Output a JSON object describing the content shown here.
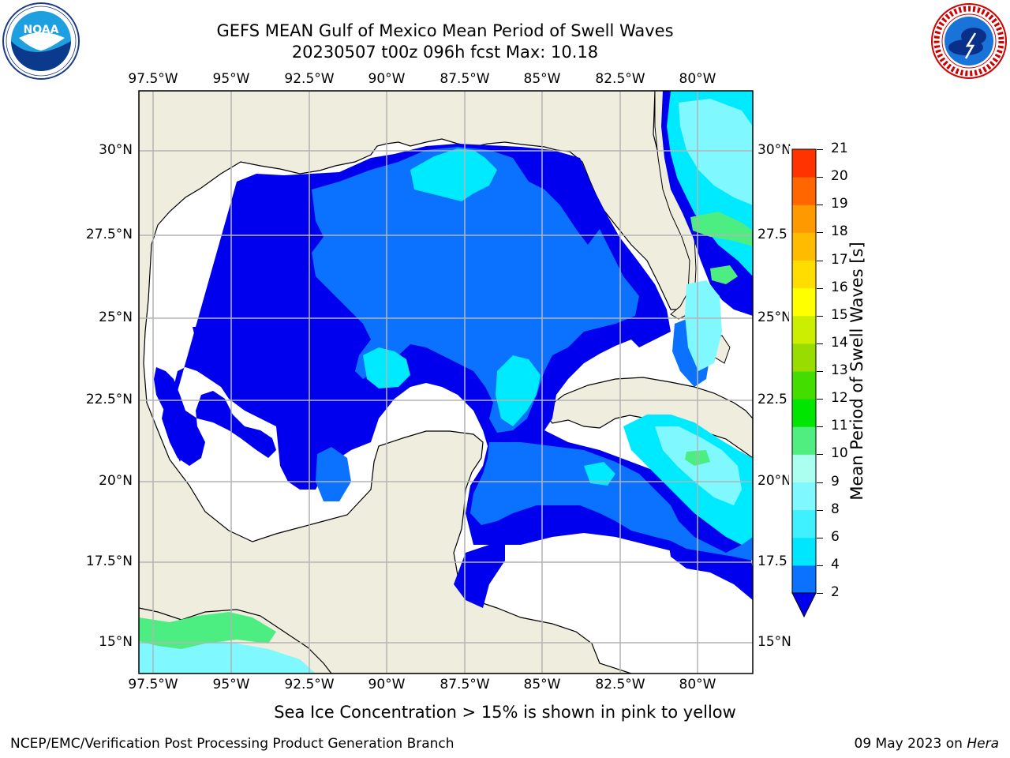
{
  "title_line1": "GEFS MEAN Gulf of Mexico Mean Period of Swell Waves",
  "title_line2": "20230507 t00z 096h fcst   Max: 10.18",
  "logos": {
    "left": "noaa-logo",
    "right": "national-weather-service-logo"
  },
  "lon_labels": [
    "97.5°W",
    "95°W",
    "92.5°W",
    "90°W",
    "87.5°W",
    "85°W",
    "82.5°W",
    "80°W"
  ],
  "lat_labels_left": [
    "30°N",
    "27.5°N",
    "25°N",
    "22.5°N",
    "20°N",
    "17.5°N",
    "15°N"
  ],
  "lat_labels_right": [
    "30°N",
    "27.5",
    "25°N",
    "22.5",
    "20°N",
    "17.5",
    "15°N"
  ],
  "colorbar": {
    "label": "Mean Period of Swell Waves [s]",
    "ticks": [
      "2",
      "4",
      "6",
      "8",
      "9",
      "10",
      "11",
      "12",
      "13",
      "14",
      "15",
      "16",
      "17",
      "18",
      "19",
      "20",
      "21"
    ],
    "colors": [
      "#0a72ff",
      "#00e6ff",
      "#3ff0ff",
      "#80f8ff",
      "#aafff0",
      "#50ee80",
      "#00e600",
      "#44dd00",
      "#99dd00",
      "#ccee00",
      "#ffff00",
      "#ffdd00",
      "#ffbb00",
      "#ff9900",
      "#ff6600",
      "#ff3300"
    ],
    "under_color": "#0000ee"
  },
  "colors": {
    "land": "#efeddd",
    "deep_blue": "#0000ee",
    "mid_blue": "#0a72ff",
    "cyan": "#00eaff",
    "light_cyan": "#7ff8ff",
    "green": "#4cee82",
    "grid": "#b4b4b4"
  },
  "subtitle": "Sea Ice Concentration > 15% is shown in pink to yellow",
  "footer_left": "NCEP/EMC/Verification Post Processing Product Generation Branch",
  "footer_date": "09 May 2023 on",
  "footer_machine": "Hera"
}
